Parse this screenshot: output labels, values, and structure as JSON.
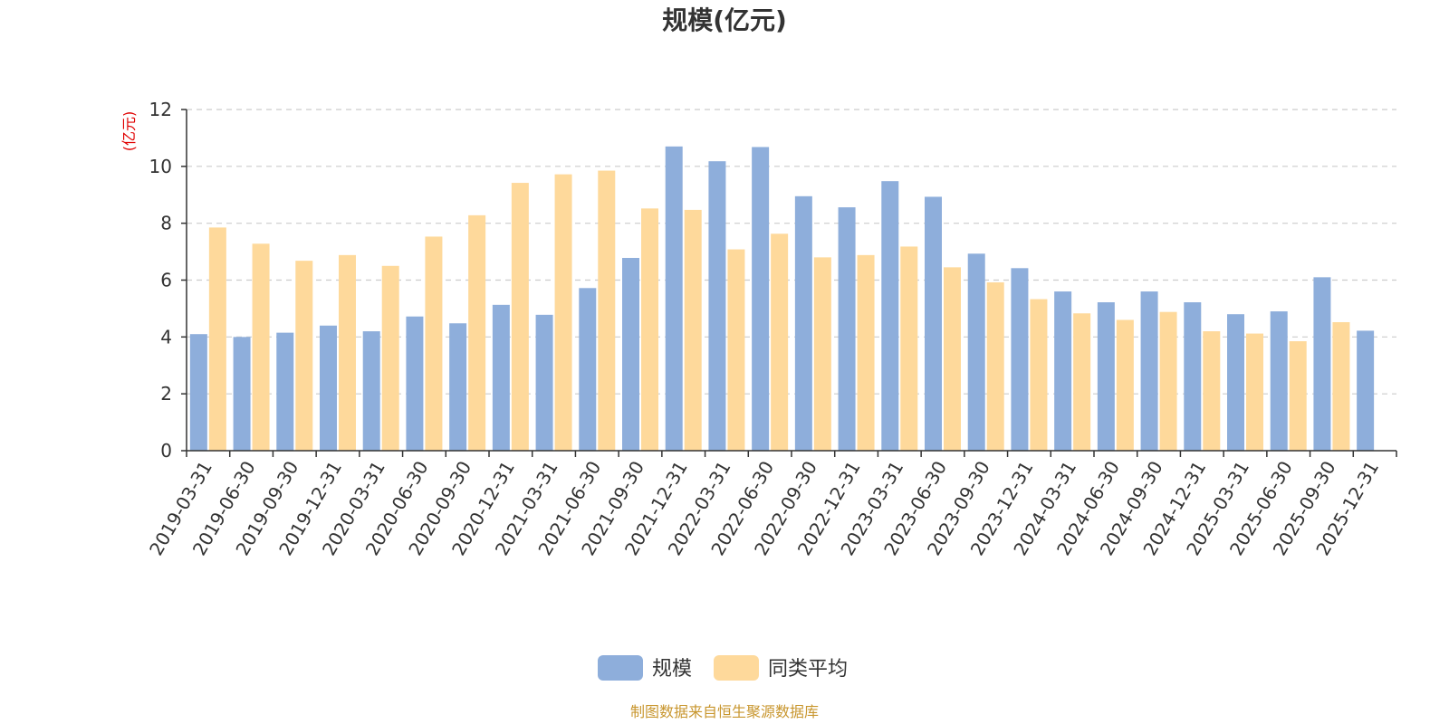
{
  "chart_data": {
    "type": "bar",
    "title": "规模(亿元)",
    "ylabel": "(亿元)",
    "xlabel": "",
    "ylim": [
      0,
      12
    ],
    "yticks": [
      0,
      2,
      4,
      6,
      8,
      10,
      12
    ],
    "grid": true,
    "legend_position": "bottom-center",
    "categories": [
      "2019-03-31",
      "2019-06-30",
      "2019-09-30",
      "2019-12-31",
      "2020-03-31",
      "2020-06-30",
      "2020-09-30",
      "2020-12-31",
      "2021-03-31",
      "2021-06-30",
      "2021-09-30",
      "2021-12-31",
      "2022-03-31",
      "2022-06-30",
      "2022-09-30",
      "2022-12-31",
      "2023-03-31",
      "2023-06-30",
      "2023-09-30",
      "2023-12-31",
      "2024-03-31",
      "2024-06-30",
      "2024-09-30",
      "2024-12-31",
      "2025-03-31",
      "2025-06-30",
      "2025-09-30",
      "2025-12-31"
    ],
    "series": [
      {
        "name": "规模",
        "color": "#8eaedb",
        "values": [
          4.1,
          4.0,
          4.15,
          4.4,
          4.2,
          4.72,
          4.48,
          5.13,
          4.78,
          5.72,
          6.78,
          10.7,
          10.18,
          10.68,
          8.95,
          8.56,
          9.48,
          8.93,
          6.93,
          6.42,
          5.6,
          5.22,
          5.6,
          5.22,
          4.8,
          4.9,
          6.1,
          4.22
        ]
      },
      {
        "name": "同类平均",
        "color": "#fed99b",
        "values": [
          7.85,
          7.28,
          6.68,
          6.88,
          6.5,
          7.53,
          8.28,
          9.42,
          9.72,
          9.85,
          8.52,
          8.47,
          7.08,
          7.63,
          6.8,
          6.88,
          7.18,
          6.45,
          5.92,
          5.33,
          4.83,
          4.6,
          4.88,
          4.2,
          4.12,
          3.85,
          4.52,
          null
        ]
      }
    ]
  },
  "source_text": "制图数据来自恒生聚源数据库",
  "colors": {
    "axis": "#333333",
    "grid": "#cccccc",
    "title": "#333333",
    "ylabel": "#e00000",
    "source": "#c8962e"
  }
}
